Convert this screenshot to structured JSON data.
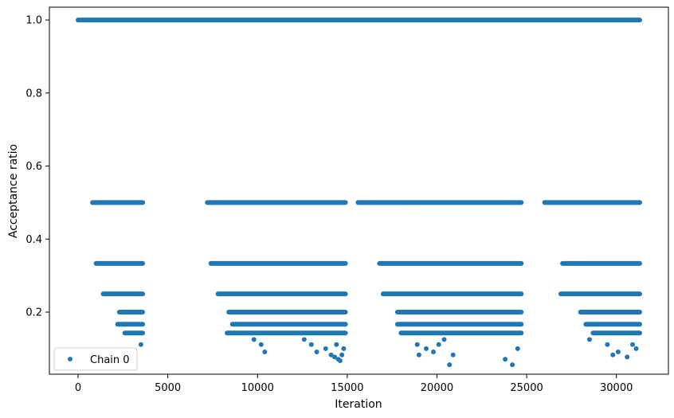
{
  "chart_data": {
    "type": "scatter",
    "title": "",
    "xlabel": "Iteration",
    "ylabel": "Acceptance ratio",
    "xlim": [
      -1600,
      32900
    ],
    "ylim": [
      0.03,
      1.035
    ],
    "xticks": [
      0,
      5000,
      10000,
      15000,
      20000,
      25000,
      30000
    ],
    "xtick_labels": [
      "0",
      "5000",
      "10000",
      "15000",
      "20000",
      "25000",
      "30000"
    ],
    "yticks": [
      0.2,
      0.4,
      0.6,
      0.8,
      1.0
    ],
    "ytick_labels": [
      "0.2",
      "0.4",
      "0.6",
      "0.8",
      "1.0"
    ],
    "grid": false,
    "legend_position": "lower-left",
    "marker_color": "#1f77b4",
    "series": [
      {
        "name": "Chain 0",
        "bands": [
          {
            "y": 1.0,
            "x_ranges": [
              [
                0,
                31300
              ]
            ]
          },
          {
            "y": 0.5,
            "x_ranges": [
              [
                800,
                3600
              ],
              [
                7200,
                14900
              ],
              [
                15600,
                24700
              ],
              [
                26000,
                31300
              ]
            ]
          },
          {
            "y": 0.3333,
            "x_ranges": [
              [
                1000,
                3600
              ],
              [
                7400,
                14900
              ],
              [
                16800,
                24700
              ],
              [
                27000,
                31300
              ]
            ]
          },
          {
            "y": 0.25,
            "x_ranges": [
              [
                1400,
                3600
              ],
              [
                7800,
                14900
              ],
              [
                17000,
                24700
              ],
              [
                26900,
                31300
              ]
            ]
          },
          {
            "y": 0.2,
            "x_ranges": [
              [
                2300,
                3600
              ],
              [
                8400,
                14900
              ],
              [
                17800,
                24700
              ],
              [
                28000,
                31300
              ]
            ]
          },
          {
            "y": 0.1667,
            "x_ranges": [
              [
                2200,
                3600
              ],
              [
                8600,
                14900
              ],
              [
                17800,
                24700
              ],
              [
                28300,
                31300
              ]
            ]
          },
          {
            "y": 0.1429,
            "x_ranges": [
              [
                2600,
                3600
              ],
              [
                8300,
                14900
              ],
              [
                18000,
                24700
              ],
              [
                28700,
                31300
              ]
            ]
          }
        ],
        "points": [
          {
            "x": 3500,
            "y": 0.111
          },
          {
            "x": 9800,
            "y": 0.125
          },
          {
            "x": 10200,
            "y": 0.111
          },
          {
            "x": 10400,
            "y": 0.091
          },
          {
            "x": 12600,
            "y": 0.125
          },
          {
            "x": 13000,
            "y": 0.111
          },
          {
            "x": 13300,
            "y": 0.091
          },
          {
            "x": 13800,
            "y": 0.1
          },
          {
            "x": 14100,
            "y": 0.083
          },
          {
            "x": 14300,
            "y": 0.077
          },
          {
            "x": 14400,
            "y": 0.111
          },
          {
            "x": 14500,
            "y": 0.071
          },
          {
            "x": 14600,
            "y": 0.067
          },
          {
            "x": 14700,
            "y": 0.083
          },
          {
            "x": 14800,
            "y": 0.1
          },
          {
            "x": 18900,
            "y": 0.111
          },
          {
            "x": 19000,
            "y": 0.083
          },
          {
            "x": 19400,
            "y": 0.1
          },
          {
            "x": 19800,
            "y": 0.091
          },
          {
            "x": 20100,
            "y": 0.111
          },
          {
            "x": 20400,
            "y": 0.125
          },
          {
            "x": 20700,
            "y": 0.056
          },
          {
            "x": 20900,
            "y": 0.083
          },
          {
            "x": 23800,
            "y": 0.071
          },
          {
            "x": 24200,
            "y": 0.056
          },
          {
            "x": 24500,
            "y": 0.1
          },
          {
            "x": 28500,
            "y": 0.125
          },
          {
            "x": 29500,
            "y": 0.111
          },
          {
            "x": 29800,
            "y": 0.083
          },
          {
            "x": 30100,
            "y": 0.091
          },
          {
            "x": 30600,
            "y": 0.077
          },
          {
            "x": 30900,
            "y": 0.111
          },
          {
            "x": 31100,
            "y": 0.1
          }
        ]
      }
    ]
  }
}
